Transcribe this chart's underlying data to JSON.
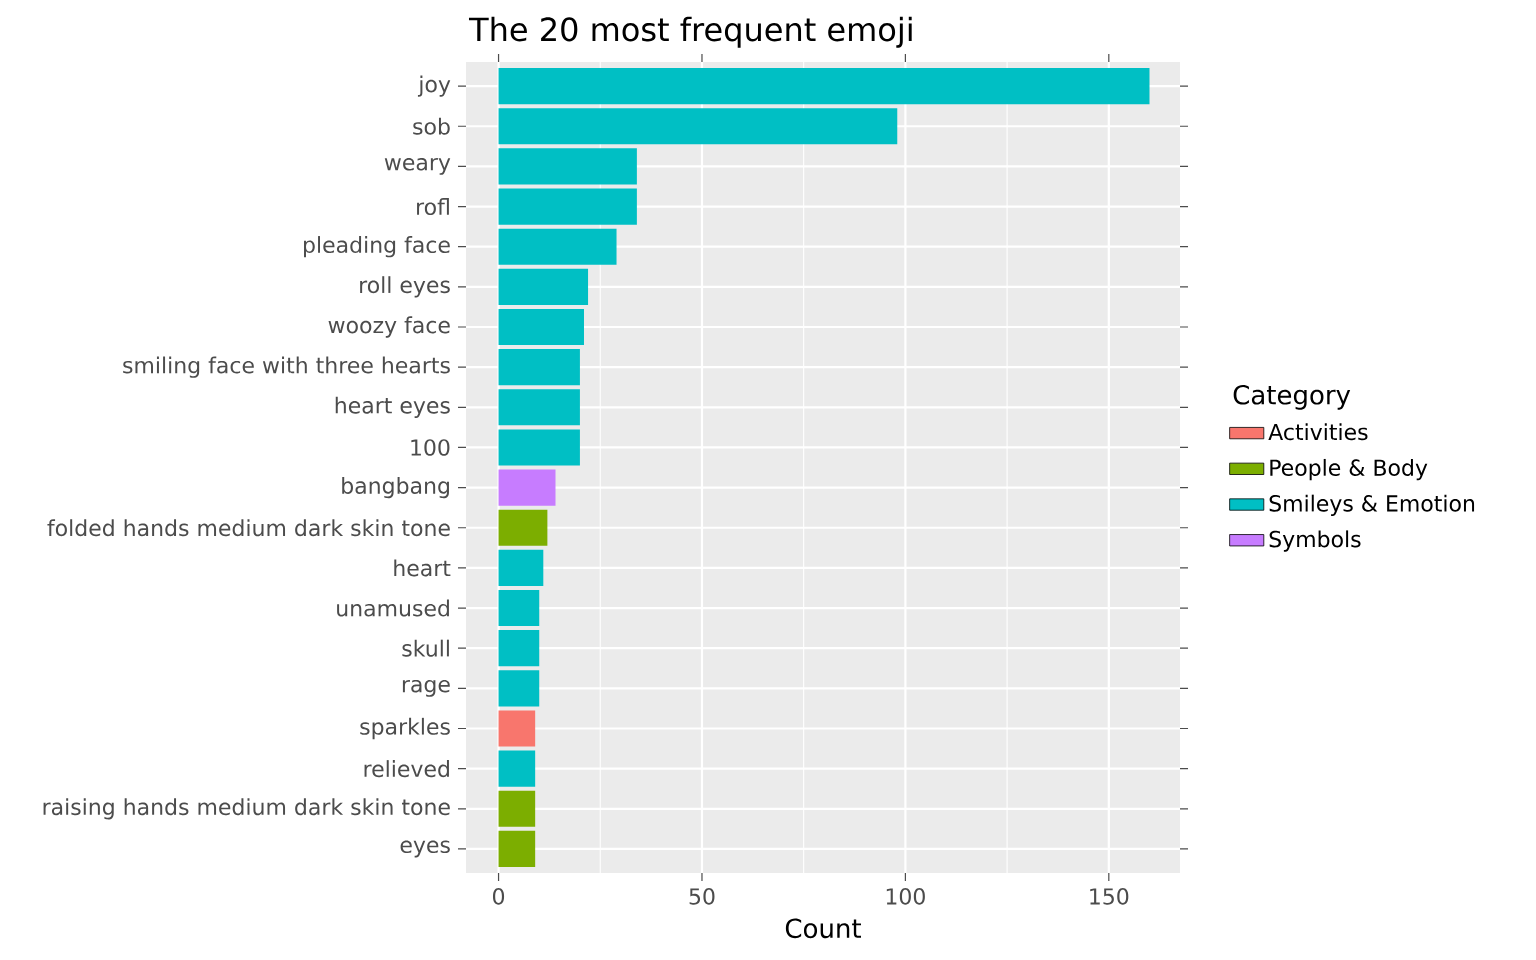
{
  "chart_data": {
    "type": "bar",
    "orientation": "horizontal",
    "title": "The 20 most frequent emoji",
    "xlabel": "Count",
    "legend_title": "Category",
    "categories": [
      "joy",
      "sob",
      "weary",
      "rofl",
      "pleading face",
      "roll eyes",
      "woozy face",
      "smiling face with three hearts",
      "heart eyes",
      "100",
      "bangbang",
      "folded hands medium dark skin tone",
      "heart",
      "unamused",
      "skull",
      "rage",
      "sparkles",
      "relieved",
      "raising hands medium dark skin tone",
      "eyes"
    ],
    "series": [
      {
        "name": "Activities",
        "color": "#f8766d",
        "values": [
          null,
          null,
          null,
          null,
          null,
          null,
          null,
          null,
          null,
          null,
          null,
          null,
          null,
          null,
          null,
          null,
          9,
          null,
          null,
          null
        ]
      },
      {
        "name": "People & Body",
        "color": "#7cae00",
        "values": [
          null,
          null,
          null,
          null,
          null,
          null,
          null,
          null,
          null,
          null,
          null,
          12,
          null,
          null,
          null,
          null,
          null,
          null,
          9,
          9
        ]
      },
      {
        "name": "Smileys & Emotion",
        "color": "#00bfc4",
        "values": [
          160,
          98,
          34,
          34,
          29,
          22,
          21,
          20,
          20,
          20,
          null,
          null,
          11,
          10,
          10,
          10,
          null,
          9,
          null,
          null
        ]
      },
      {
        "name": "Symbols",
        "color": "#c77cff",
        "values": [
          null,
          null,
          null,
          null,
          null,
          null,
          null,
          null,
          null,
          null,
          14,
          null,
          null,
          null,
          null,
          null,
          null,
          null,
          null,
          null
        ]
      }
    ],
    "xlim": [
      -8,
      167.5
    ],
    "xticks": [
      0,
      50,
      100,
      150
    ],
    "grid": true,
    "legend": "right"
  }
}
